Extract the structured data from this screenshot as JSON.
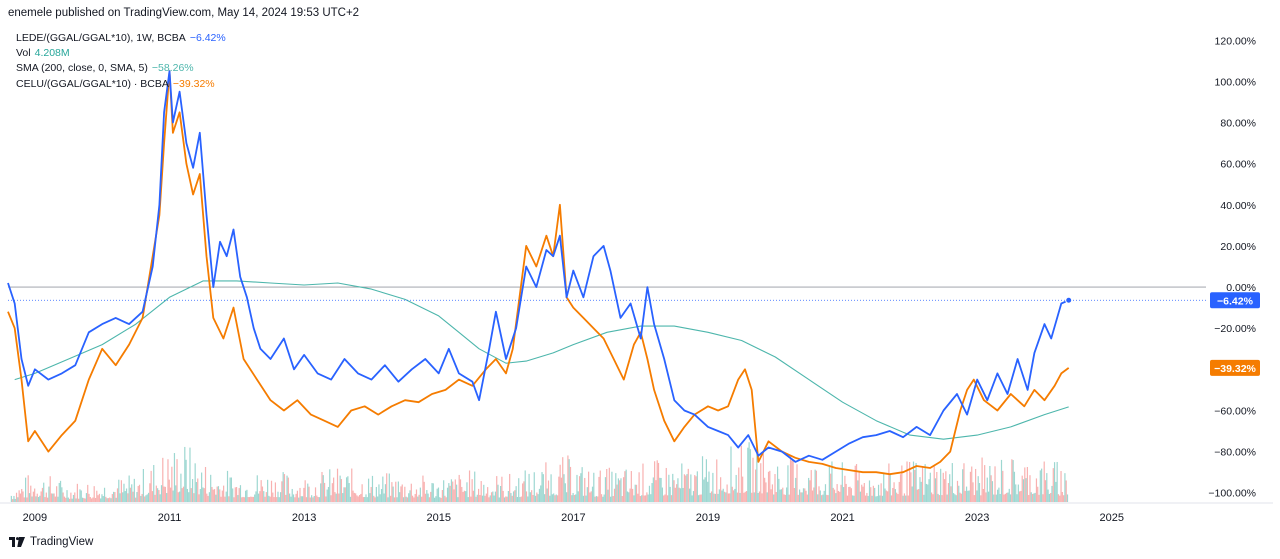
{
  "header": {
    "publisher_line": "enemele published on TradingView.com, May 14, 2024 19:53 UTC+2"
  },
  "legend": [
    {
      "label": "LEDE/(GGAL/GGAL*10), 1W, BCBA",
      "value": "−6.42%",
      "color": "#2962ff"
    },
    {
      "label": "Vol",
      "value": "4.208M",
      "color": "#26a69a"
    },
    {
      "label": "SMA (200, close, 0, SMA, 5)",
      "value": "−58.26%",
      "color": "#4db6ac"
    },
    {
      "label": "CELU/(GGAL/GGAL*10) · BCBA",
      "value": "−39.32%",
      "color": "#f57c00"
    }
  ],
  "footer": {
    "brand": "TradingView"
  },
  "chart_data": {
    "type": "line",
    "y_unit": "%",
    "ylim": [
      -105,
      125
    ],
    "xlim": [
      2008.6,
      2026.4
    ],
    "y_ticks": [
      "120.00%",
      "100.00%",
      "80.00%",
      "60.00%",
      "40.00%",
      "20.00%",
      "0.00%",
      "−20.00%",
      "−40.00%",
      "−60.00%",
      "−80.00%",
      "−100.00%"
    ],
    "y_tick_values": [
      120,
      100,
      80,
      60,
      40,
      20,
      0,
      -20,
      -40,
      -60,
      -80,
      -100
    ],
    "x_ticks": [
      "2009",
      "2011",
      "2013",
      "2015",
      "2017",
      "2019",
      "2021",
      "2023",
      "2025"
    ],
    "x_tick_values": [
      2009,
      2011,
      2013,
      2015,
      2017,
      2019,
      2021,
      2023,
      2025
    ],
    "zero_line": 0,
    "series": [
      {
        "name": "LEDE/(GGAL/GGAL*10)",
        "color": "#2962ff",
        "last_label": "−6.42%",
        "last_value": -6.42,
        "points": [
          [
            2008.6,
            2
          ],
          [
            2008.7,
            -8
          ],
          [
            2008.8,
            -35
          ],
          [
            2008.9,
            -48
          ],
          [
            2009.0,
            -40
          ],
          [
            2009.2,
            -45
          ],
          [
            2009.4,
            -42
          ],
          [
            2009.6,
            -38
          ],
          [
            2009.8,
            -22
          ],
          [
            2010.0,
            -18
          ],
          [
            2010.2,
            -15
          ],
          [
            2010.4,
            -18
          ],
          [
            2010.6,
            -12
          ],
          [
            2010.75,
            10
          ],
          [
            2010.85,
            40
          ],
          [
            2010.92,
            85
          ],
          [
            2011.0,
            105
          ],
          [
            2011.05,
            80
          ],
          [
            2011.15,
            95
          ],
          [
            2011.25,
            70
          ],
          [
            2011.35,
            58
          ],
          [
            2011.45,
            75
          ],
          [
            2011.55,
            35
          ],
          [
            2011.65,
            0
          ],
          [
            2011.75,
            22
          ],
          [
            2011.85,
            15
          ],
          [
            2011.95,
            28
          ],
          [
            2012.05,
            5
          ],
          [
            2012.15,
            -5
          ],
          [
            2012.25,
            -20
          ],
          [
            2012.35,
            -30
          ],
          [
            2012.5,
            -35
          ],
          [
            2012.7,
            -25
          ],
          [
            2012.85,
            -40
          ],
          [
            2013.0,
            -33
          ],
          [
            2013.2,
            -42
          ],
          [
            2013.4,
            -45
          ],
          [
            2013.6,
            -35
          ],
          [
            2013.8,
            -42
          ],
          [
            2014.0,
            -45
          ],
          [
            2014.2,
            -38
          ],
          [
            2014.4,
            -46
          ],
          [
            2014.6,
            -40
          ],
          [
            2014.8,
            -35
          ],
          [
            2015.0,
            -42
          ],
          [
            2015.15,
            -30
          ],
          [
            2015.3,
            -42
          ],
          [
            2015.5,
            -46
          ],
          [
            2015.6,
            -55
          ],
          [
            2015.75,
            -30
          ],
          [
            2015.85,
            -12
          ],
          [
            2016.0,
            -35
          ],
          [
            2016.15,
            -20
          ],
          [
            2016.3,
            10
          ],
          [
            2016.45,
            0
          ],
          [
            2016.6,
            18
          ],
          [
            2016.7,
            15
          ],
          [
            2016.8,
            25
          ],
          [
            2016.9,
            -5
          ],
          [
            2017.0,
            8
          ],
          [
            2017.15,
            -5
          ],
          [
            2017.3,
            15
          ],
          [
            2017.45,
            20
          ],
          [
            2017.55,
            8
          ],
          [
            2017.7,
            -15
          ],
          [
            2017.85,
            -8
          ],
          [
            2018.0,
            -25
          ],
          [
            2018.1,
            0
          ],
          [
            2018.2,
            -18
          ],
          [
            2018.35,
            -35
          ],
          [
            2018.5,
            -55
          ],
          [
            2018.65,
            -60
          ],
          [
            2018.8,
            -62
          ],
          [
            2019.0,
            -68
          ],
          [
            2019.15,
            -70
          ],
          [
            2019.3,
            -72
          ],
          [
            2019.45,
            -78
          ],
          [
            2019.6,
            -72
          ],
          [
            2019.75,
            -82
          ],
          [
            2019.9,
            -78
          ],
          [
            2020.1,
            -80
          ],
          [
            2020.3,
            -85
          ],
          [
            2020.5,
            -82
          ],
          [
            2020.7,
            -84
          ],
          [
            2020.9,
            -80
          ],
          [
            2021.1,
            -76
          ],
          [
            2021.3,
            -73
          ],
          [
            2021.5,
            -72
          ],
          [
            2021.7,
            -70
          ],
          [
            2021.9,
            -73
          ],
          [
            2022.1,
            -68
          ],
          [
            2022.3,
            -72
          ],
          [
            2022.5,
            -60
          ],
          [
            2022.7,
            -52
          ],
          [
            2022.85,
            -62
          ],
          [
            2023.0,
            -45
          ],
          [
            2023.15,
            -55
          ],
          [
            2023.3,
            -42
          ],
          [
            2023.45,
            -52
          ],
          [
            2023.6,
            -35
          ],
          [
            2023.75,
            -50
          ],
          [
            2023.85,
            -32
          ],
          [
            2024.0,
            -18
          ],
          [
            2024.1,
            -25
          ],
          [
            2024.25,
            -8
          ],
          [
            2024.36,
            -6.42
          ]
        ]
      },
      {
        "name": "CELU/(GGAL/GGAL*10)",
        "color": "#f57c00",
        "last_label": "−39.32%",
        "last_value": -39.32,
        "points": [
          [
            2008.6,
            -12
          ],
          [
            2008.7,
            -20
          ],
          [
            2008.8,
            -45
          ],
          [
            2008.9,
            -75
          ],
          [
            2009.0,
            -70
          ],
          [
            2009.2,
            -80
          ],
          [
            2009.4,
            -72
          ],
          [
            2009.6,
            -65
          ],
          [
            2009.8,
            -45
          ],
          [
            2010.0,
            -30
          ],
          [
            2010.2,
            -38
          ],
          [
            2010.4,
            -28
          ],
          [
            2010.6,
            -15
          ],
          [
            2010.75,
            15
          ],
          [
            2010.85,
            35
          ],
          [
            2010.92,
            70
          ],
          [
            2011.0,
            105
          ],
          [
            2011.05,
            75
          ],
          [
            2011.15,
            85
          ],
          [
            2011.25,
            60
          ],
          [
            2011.35,
            45
          ],
          [
            2011.45,
            55
          ],
          [
            2011.55,
            15
          ],
          [
            2011.65,
            -15
          ],
          [
            2011.8,
            -25
          ],
          [
            2011.95,
            -10
          ],
          [
            2012.1,
            -35
          ],
          [
            2012.3,
            -45
          ],
          [
            2012.5,
            -55
          ],
          [
            2012.7,
            -60
          ],
          [
            2012.9,
            -55
          ],
          [
            2013.1,
            -62
          ],
          [
            2013.3,
            -65
          ],
          [
            2013.5,
            -68
          ],
          [
            2013.7,
            -60
          ],
          [
            2013.9,
            -58
          ],
          [
            2014.1,
            -62
          ],
          [
            2014.3,
            -58
          ],
          [
            2014.5,
            -55
          ],
          [
            2014.7,
            -56
          ],
          [
            2014.9,
            -52
          ],
          [
            2015.1,
            -50
          ],
          [
            2015.3,
            -45
          ],
          [
            2015.5,
            -48
          ],
          [
            2015.7,
            -40
          ],
          [
            2015.85,
            -35
          ],
          [
            2016.0,
            -42
          ],
          [
            2016.1,
            -30
          ],
          [
            2016.3,
            20
          ],
          [
            2016.45,
            10
          ],
          [
            2016.6,
            25
          ],
          [
            2016.7,
            15
          ],
          [
            2016.8,
            40
          ],
          [
            2016.9,
            -5
          ],
          [
            2017.0,
            -10
          ],
          [
            2017.15,
            -15
          ],
          [
            2017.3,
            -20
          ],
          [
            2017.45,
            -25
          ],
          [
            2017.6,
            -35
          ],
          [
            2017.75,
            -45
          ],
          [
            2017.9,
            -28
          ],
          [
            2018.0,
            -22
          ],
          [
            2018.1,
            -35
          ],
          [
            2018.2,
            -50
          ],
          [
            2018.35,
            -65
          ],
          [
            2018.5,
            -75
          ],
          [
            2018.65,
            -68
          ],
          [
            2018.8,
            -62
          ],
          [
            2019.0,
            -58
          ],
          [
            2019.15,
            -60
          ],
          [
            2019.3,
            -58
          ],
          [
            2019.45,
            -45
          ],
          [
            2019.55,
            -40
          ],
          [
            2019.65,
            -50
          ],
          [
            2019.75,
            -85
          ],
          [
            2019.9,
            -75
          ],
          [
            2020.1,
            -80
          ],
          [
            2020.3,
            -83
          ],
          [
            2020.5,
            -85
          ],
          [
            2020.7,
            -86
          ],
          [
            2020.9,
            -88
          ],
          [
            2021.1,
            -89
          ],
          [
            2021.3,
            -90
          ],
          [
            2021.5,
            -90
          ],
          [
            2021.7,
            -91
          ],
          [
            2021.9,
            -90
          ],
          [
            2022.1,
            -87
          ],
          [
            2022.3,
            -88
          ],
          [
            2022.45,
            -85
          ],
          [
            2022.6,
            -80
          ],
          [
            2022.75,
            -60
          ],
          [
            2022.85,
            -50
          ],
          [
            2022.95,
            -45
          ],
          [
            2023.1,
            -55
          ],
          [
            2023.3,
            -60
          ],
          [
            2023.5,
            -52
          ],
          [
            2023.7,
            -58
          ],
          [
            2023.85,
            -50
          ],
          [
            2024.0,
            -55
          ],
          [
            2024.15,
            -48
          ],
          [
            2024.25,
            -42
          ],
          [
            2024.36,
            -39.32
          ]
        ]
      },
      {
        "name": "SMA (200, close, 0, SMA, 5)",
        "color": "#4db6ac",
        "last_value": -58.26,
        "points": [
          [
            2008.7,
            -45
          ],
          [
            2009.0,
            -42
          ],
          [
            2009.5,
            -35
          ],
          [
            2010.0,
            -28
          ],
          [
            2010.5,
            -18
          ],
          [
            2011.0,
            -5
          ],
          [
            2011.5,
            3
          ],
          [
            2012.0,
            3
          ],
          [
            2012.5,
            2
          ],
          [
            2013.0,
            1
          ],
          [
            2013.5,
            2
          ],
          [
            2014.0,
            -1
          ],
          [
            2014.5,
            -6
          ],
          [
            2015.0,
            -14
          ],
          [
            2015.3,
            -22
          ],
          [
            2015.6,
            -30
          ],
          [
            2016.0,
            -37
          ],
          [
            2016.3,
            -36
          ],
          [
            2016.7,
            -32
          ],
          [
            2017.0,
            -28
          ],
          [
            2017.5,
            -22
          ],
          [
            2018.0,
            -19
          ],
          [
            2018.5,
            -19
          ],
          [
            2019.0,
            -22
          ],
          [
            2019.5,
            -26
          ],
          [
            2020.0,
            -34
          ],
          [
            2020.5,
            -45
          ],
          [
            2021.0,
            -56
          ],
          [
            2021.5,
            -65
          ],
          [
            2022.0,
            -72
          ],
          [
            2022.5,
            -74
          ],
          [
            2023.0,
            -72
          ],
          [
            2023.5,
            -68
          ],
          [
            2024.0,
            -62
          ],
          [
            2024.36,
            -58.26
          ]
        ]
      }
    ],
    "volume_series": {
      "name": "Vol",
      "value_label": "4.208M",
      "unit": "M shares",
      "description": "Weekly volume histogram at chart bottom, red and green bars",
      "points": [
        [
          2008.65,
          1.8
        ],
        [
          2009.0,
          3.5
        ],
        [
          2009.5,
          2.2
        ],
        [
          2010.0,
          2.5
        ],
        [
          2010.5,
          3.0
        ],
        [
          2010.9,
          5.5
        ],
        [
          2011.2,
          6.8
        ],
        [
          2011.6,
          4.0
        ],
        [
          2012.0,
          3.2
        ],
        [
          2012.5,
          3.5
        ],
        [
          2013.0,
          3.0
        ],
        [
          2013.5,
          3.8
        ],
        [
          2014.0,
          3.2
        ],
        [
          2014.5,
          3.0
        ],
        [
          2015.0,
          2.8
        ],
        [
          2015.5,
          3.5
        ],
        [
          2016.0,
          3.0
        ],
        [
          2016.5,
          4.0
        ],
        [
          2016.9,
          5.0
        ],
        [
          2017.3,
          3.6
        ],
        [
          2017.8,
          3.8
        ],
        [
          2018.2,
          4.5
        ],
        [
          2018.7,
          4.2
        ],
        [
          2019.2,
          5.8
        ],
        [
          2019.7,
          6.5
        ],
        [
          2020.0,
          5.0
        ],
        [
          2020.5,
          4.8
        ],
        [
          2021.0,
          4.2
        ],
        [
          2021.5,
          3.8
        ],
        [
          2022.0,
          4.5
        ],
        [
          2022.5,
          4.8
        ],
        [
          2023.0,
          4.6
        ],
        [
          2023.5,
          5.0
        ],
        [
          2024.0,
          4.8
        ],
        [
          2024.36,
          4.208
        ]
      ]
    },
    "xlabel": "",
    "ylabel": "",
    "legend_position": "top-left",
    "grid": false
  }
}
